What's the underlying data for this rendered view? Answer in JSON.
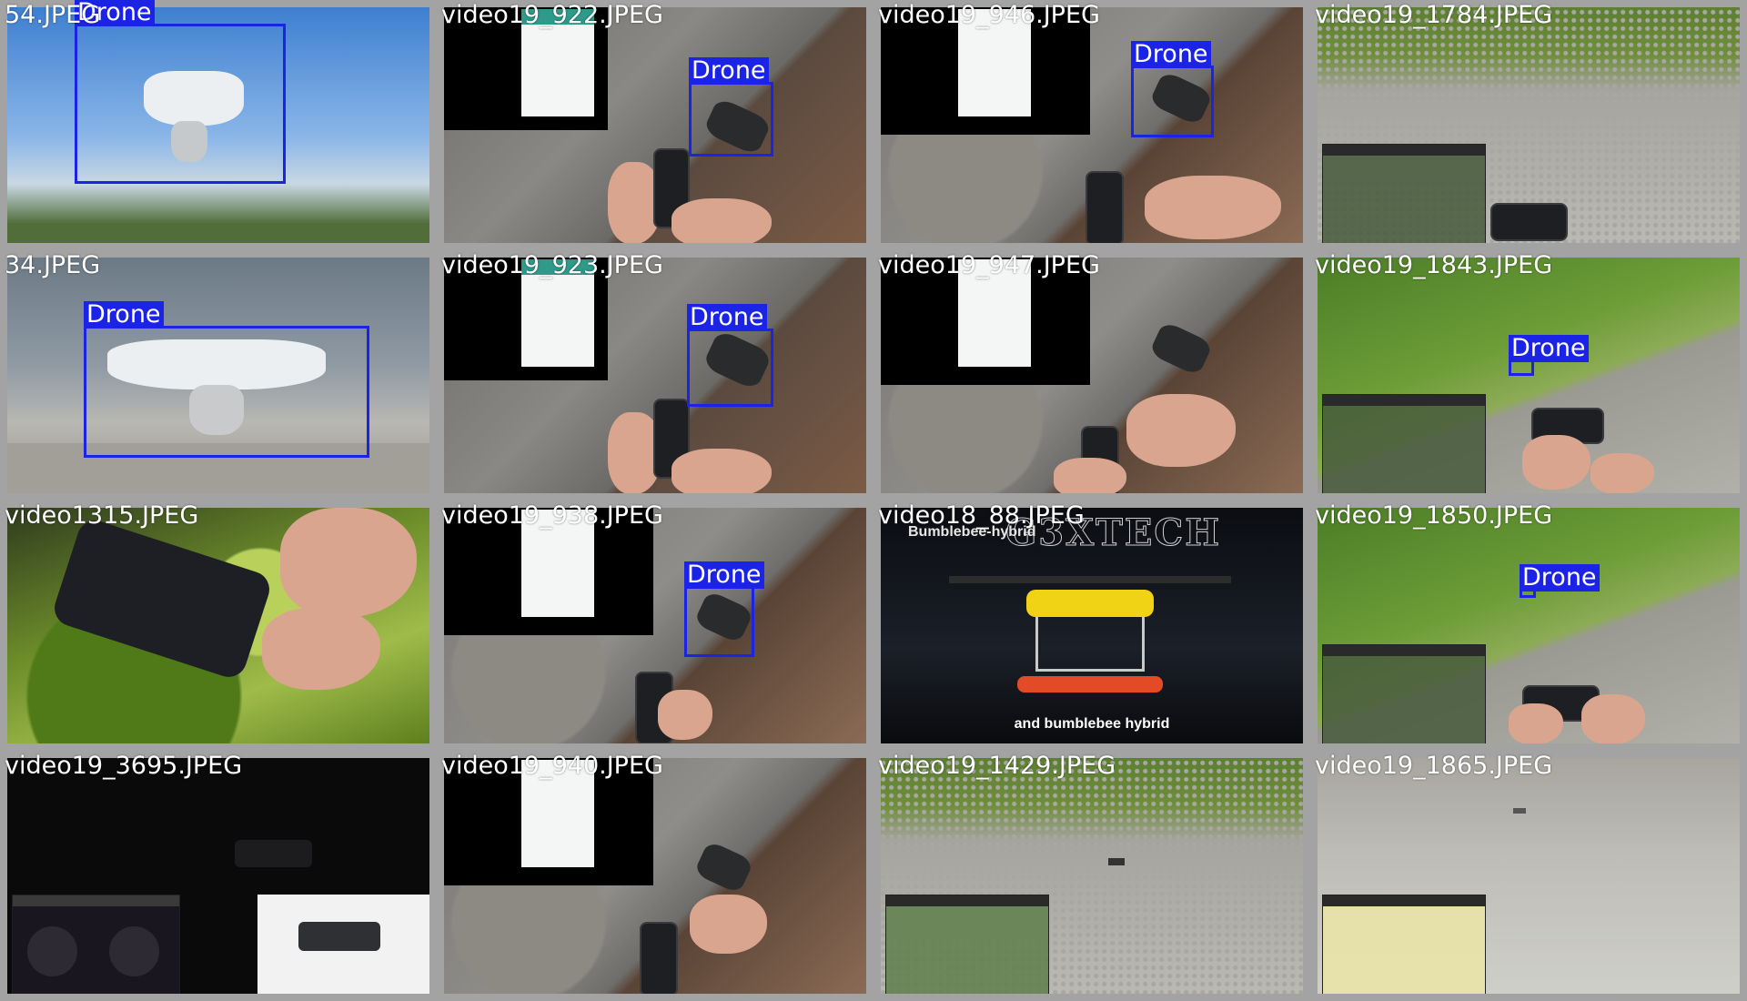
{
  "colors": {
    "tile_border": "#a3a3a3",
    "bbox": "#1b23e6",
    "label_text": "#ffffff"
  },
  "detection_label": "Drone",
  "tiles": [
    {
      "filename": "54.JPEG",
      "has_detection": true
    },
    {
      "filename": "video19_922.JPEG",
      "has_detection": true
    },
    {
      "filename": "video19_946.JPEG",
      "has_detection": true
    },
    {
      "filename": "video19_1784.JPEG",
      "has_detection": false
    },
    {
      "filename": "34.JPEG",
      "has_detection": true
    },
    {
      "filename": "video19_923.JPEG",
      "has_detection": true
    },
    {
      "filename": "video19_947.JPEG",
      "has_detection": false
    },
    {
      "filename": "video19_1843.JPEG",
      "has_detection": true
    },
    {
      "filename": "video1315.JPEG",
      "has_detection": false
    },
    {
      "filename": "video19_938.JPEG",
      "has_detection": true
    },
    {
      "filename": "video18_88.JPEG",
      "has_detection": false
    },
    {
      "filename": "video19_1850.JPEG",
      "has_detection": true
    },
    {
      "filename": "video19_3695.JPEG",
      "has_detection": false
    },
    {
      "filename": "video19_940.JPEG",
      "has_detection": false
    },
    {
      "filename": "video19_1429.JPEG",
      "has_detection": false
    },
    {
      "filename": "video19_1865.JPEG",
      "has_detection": false
    }
  ],
  "in_image_text": {
    "video18_88_title": "Bumblebee-hybrid",
    "video18_88_logo": "G3XTECH",
    "video18_88_caption": "and bumblebee hybrid"
  }
}
